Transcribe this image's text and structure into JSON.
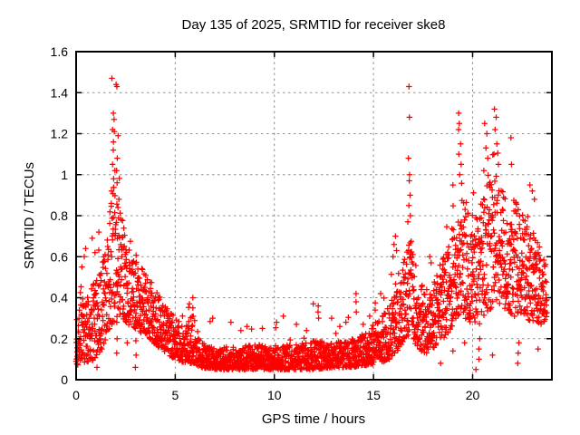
{
  "chart_data": {
    "type": "scatter",
    "title": "Day 135 of 2025, SRMTID for receiver ske8",
    "xlabel": "GPS time / hours",
    "ylabel": "SRMTID / TECUs",
    "xlim": [
      0,
      24
    ],
    "ylim": [
      0,
      1.6
    ],
    "xticks": [
      0,
      5,
      10,
      15,
      20
    ],
    "xtick_labels": [
      "0",
      "5",
      "10",
      "15",
      "20"
    ],
    "yticks": [
      0,
      0.2,
      0.4,
      0.6,
      0.8,
      1,
      1.2,
      1.4,
      1.6
    ],
    "ytick_labels": [
      "0",
      "0.2",
      "0.4",
      "0.6",
      "0.8",
      "1",
      "1.2",
      "1.4",
      "1.6"
    ],
    "grid": true,
    "legend": false,
    "marker": "plus",
    "marker_color": "#ff0000",
    "grid_color": "#909090",
    "border_color": "#000000",
    "background_color": "#ffffff",
    "series_name": "SRMTID",
    "sample_count": 2856,
    "time_span_hours": [
      0,
      23.75
    ],
    "description": "Dense time series of red plus markers: morning peak near hour 2 (max 1.47 TECUs), quiet midday band 0.05-0.2 from hours 6-15, evening activity from hour 16 onward with spikes near 1.3-1.43 at hours 16.8, 19.3, 20.7, 21.2",
    "band_profile": [
      [
        0.0,
        0.07,
        0.38
      ],
      [
        0.5,
        0.08,
        0.42
      ],
      [
        1.0,
        0.1,
        0.48
      ],
      [
        1.3,
        0.15,
        0.58
      ],
      [
        1.6,
        0.22,
        0.75
      ],
      [
        1.9,
        0.28,
        0.95
      ],
      [
        2.2,
        0.3,
        0.88
      ],
      [
        2.5,
        0.28,
        0.68
      ],
      [
        3.0,
        0.24,
        0.58
      ],
      [
        3.5,
        0.22,
        0.52
      ],
      [
        4.0,
        0.17,
        0.45
      ],
      [
        4.5,
        0.13,
        0.37
      ],
      [
        5.0,
        0.1,
        0.3
      ],
      [
        5.5,
        0.08,
        0.26
      ],
      [
        5.9,
        0.08,
        0.32
      ],
      [
        6.3,
        0.06,
        0.18
      ],
      [
        7.0,
        0.05,
        0.16
      ],
      [
        8.0,
        0.05,
        0.16
      ],
      [
        9.0,
        0.05,
        0.17
      ],
      [
        10.0,
        0.05,
        0.17
      ],
      [
        11.0,
        0.05,
        0.17
      ],
      [
        12.0,
        0.05,
        0.19
      ],
      [
        13.0,
        0.06,
        0.18
      ],
      [
        14.0,
        0.06,
        0.2
      ],
      [
        14.7,
        0.07,
        0.24
      ],
      [
        15.3,
        0.08,
        0.3
      ],
      [
        15.8,
        0.1,
        0.36
      ],
      [
        16.2,
        0.14,
        0.52
      ],
      [
        16.6,
        0.2,
        0.62
      ],
      [
        16.9,
        0.22,
        0.68
      ],
      [
        17.2,
        0.14,
        0.48
      ],
      [
        17.7,
        0.13,
        0.45
      ],
      [
        18.2,
        0.16,
        0.52
      ],
      [
        18.7,
        0.22,
        0.65
      ],
      [
        19.1,
        0.28,
        0.8
      ],
      [
        19.4,
        0.32,
        0.92
      ],
      [
        19.8,
        0.28,
        0.82
      ],
      [
        20.2,
        0.25,
        0.8
      ],
      [
        20.7,
        0.32,
        0.95
      ],
      [
        21.2,
        0.38,
        1.0
      ],
      [
        21.6,
        0.33,
        0.92
      ],
      [
        22.1,
        0.3,
        0.88
      ],
      [
        22.6,
        0.3,
        0.82
      ],
      [
        23.1,
        0.28,
        0.72
      ],
      [
        23.5,
        0.27,
        0.62
      ],
      [
        23.75,
        0.25,
        0.55
      ]
    ],
    "outliers": [
      [
        1.82,
        1.47
      ],
      [
        2.02,
        1.44
      ],
      [
        2.05,
        1.43
      ],
      [
        1.86,
        1.3
      ],
      [
        1.9,
        1.27
      ],
      [
        1.84,
        1.22
      ],
      [
        1.94,
        1.21
      ],
      [
        2.1,
        1.19
      ],
      [
        1.88,
        1.16
      ],
      [
        1.86,
        1.12
      ],
      [
        2.07,
        1.08
      ],
      [
        1.84,
        1.05
      ],
      [
        2.04,
        1.02
      ],
      [
        1.96,
        1.02
      ],
      [
        1.9,
        0.98
      ],
      [
        2.08,
        0.96
      ],
      [
        1.8,
        0.92
      ],
      [
        2.16,
        0.88
      ],
      [
        1.78,
        0.86
      ],
      [
        2.12,
        0.84
      ],
      [
        2.05,
        0.28
      ],
      [
        2.06,
        0.2
      ],
      [
        2.05,
        0.13
      ],
      [
        3.0,
        0.25
      ],
      [
        3.0,
        0.19
      ],
      [
        3.01,
        0.12
      ],
      [
        3.0,
        0.06
      ],
      [
        1.05,
        0.06
      ],
      [
        2.55,
        0.28
      ],
      [
        2.56,
        0.18
      ],
      [
        0.42,
        0.6
      ],
      [
        0.5,
        0.64
      ],
      [
        0.82,
        0.69
      ],
      [
        0.94,
        0.62
      ],
      [
        0.3,
        0.55
      ],
      [
        1.15,
        0.72
      ],
      [
        5.7,
        0.37
      ],
      [
        5.88,
        0.4
      ],
      [
        5.9,
        0.35
      ],
      [
        6.9,
        0.3
      ],
      [
        7.8,
        0.28
      ],
      [
        8.3,
        0.24
      ],
      [
        8.6,
        0.26
      ],
      [
        9.4,
        0.25
      ],
      [
        10.1,
        0.28
      ],
      [
        10.45,
        0.31
      ],
      [
        11.1,
        0.27
      ],
      [
        11.6,
        0.24
      ],
      [
        11.95,
        0.37
      ],
      [
        12.2,
        0.36
      ],
      [
        12.21,
        0.33
      ],
      [
        12.25,
        0.3
      ],
      [
        12.9,
        0.3
      ],
      [
        13.3,
        0.26
      ],
      [
        13.6,
        0.28
      ],
      [
        14.1,
        0.42
      ],
      [
        14.11,
        0.38
      ],
      [
        14.13,
        0.33
      ],
      [
        14.5,
        0.27
      ],
      [
        14.8,
        0.31
      ],
      [
        15.1,
        0.34
      ],
      [
        15.35,
        0.42
      ],
      [
        16.0,
        0.6
      ],
      [
        16.05,
        0.66
      ],
      [
        16.1,
        0.7
      ],
      [
        16.15,
        0.63
      ],
      [
        16.78,
        1.43
      ],
      [
        16.8,
        1.28
      ],
      [
        16.76,
        1.08
      ],
      [
        16.82,
        1.0
      ],
      [
        16.8,
        0.97
      ],
      [
        16.84,
        0.9
      ],
      [
        16.78,
        0.85
      ],
      [
        16.86,
        0.8
      ],
      [
        16.74,
        0.77
      ],
      [
        17.85,
        0.6
      ],
      [
        17.9,
        0.57
      ],
      [
        19.0,
        0.95
      ],
      [
        19.28,
        1.3
      ],
      [
        19.34,
        1.25
      ],
      [
        19.3,
        1.22
      ],
      [
        19.38,
        1.15
      ],
      [
        19.32,
        1.1
      ],
      [
        19.42,
        1.05
      ],
      [
        19.36,
        1.0
      ],
      [
        20.55,
        1.02
      ],
      [
        20.62,
        1.25
      ],
      [
        20.7,
        1.2
      ],
      [
        20.66,
        1.13
      ],
      [
        20.78,
        1.08
      ],
      [
        21.12,
        1.32
      ],
      [
        21.18,
        1.28
      ],
      [
        21.14,
        1.22
      ],
      [
        21.22,
        1.15
      ],
      [
        21.1,
        1.1
      ],
      [
        21.3,
        1.05
      ],
      [
        21.92,
        1.18
      ],
      [
        21.95,
        1.05
      ],
      [
        22.9,
        0.95
      ],
      [
        23.0,
        0.92
      ],
      [
        23.1,
        0.88
      ],
      [
        19.6,
        0.18
      ],
      [
        19.02,
        0.14
      ],
      [
        20.32,
        0.1
      ],
      [
        20.3,
        0.15
      ],
      [
        20.35,
        0.2
      ],
      [
        20.15,
        0.05
      ],
      [
        22.28,
        0.08
      ],
      [
        22.3,
        0.13
      ],
      [
        22.32,
        0.18
      ],
      [
        21.0,
        0.12
      ],
      [
        23.3,
        0.15
      ],
      [
        18.4,
        0.08
      ]
    ],
    "max_point": {
      "t": 1.82,
      "v": 1.47
    }
  }
}
